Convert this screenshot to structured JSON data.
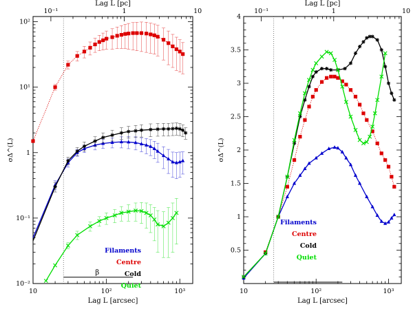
{
  "chart_data": [
    {
      "type": "line",
      "xscale": "log",
      "yscale": "log",
      "xlim": [
        10,
        1500
      ],
      "ylim": [
        0.01,
        120
      ],
      "xlabel": "Lag L [arcsec]",
      "ylabel": "σΔ^(L)",
      "top_xlabel": "Lag L [pc]",
      "x_tick_labels": [
        "10",
        "10²",
        "10³"
      ],
      "y_tick_labels": [
        "10⁻²",
        "10⁻¹",
        "1",
        "10¹",
        "10²"
      ],
      "top_tick_labels": [
        "10⁻¹",
        "1",
        "10"
      ],
      "annotation": "β",
      "legend": [
        "Filaments",
        "Centre",
        "Cold",
        "Quiet"
      ],
      "series": [
        {
          "name": "Filaments",
          "color": "#0000cc",
          "marker": "triangle",
          "x": [
            10,
            20,
            30,
            40,
            50,
            70,
            90,
            120,
            160,
            200,
            250,
            300,
            350,
            400,
            450,
            500,
            600,
            700,
            800,
            900,
            1000,
            1100
          ],
          "y": [
            0.05,
            0.32,
            0.7,
            1.0,
            1.15,
            1.3,
            1.38,
            1.43,
            1.46,
            1.45,
            1.42,
            1.36,
            1.3,
            1.24,
            1.15,
            1.05,
            0.9,
            0.8,
            0.72,
            0.7,
            0.72,
            0.75
          ],
          "err": [
            0,
            0.05,
            0.1,
            0.12,
            0.15,
            0.2,
            0.22,
            0.25,
            0.28,
            0.3,
            0.32,
            0.33,
            0.34,
            0.34,
            0.34,
            0.34,
            0.33,
            0.32,
            0.3,
            0.3,
            0.3,
            0.28
          ]
        },
        {
          "name": "Centre",
          "color": "#dd0000",
          "marker": "square",
          "x": [
            10,
            20,
            30,
            40,
            50,
            60,
            70,
            80,
            90,
            100,
            120,
            140,
            160,
            180,
            200,
            230,
            260,
            300,
            350,
            400,
            450,
            500,
            600,
            700,
            800,
            900,
            1000,
            1100
          ],
          "y": [
            1.5,
            10,
            22,
            30,
            35,
            40,
            45,
            49,
            52,
            55,
            58,
            61,
            63,
            65,
            66,
            67,
            67,
            67,
            66,
            64,
            62,
            59,
            53,
            47,
            42,
            38,
            35,
            32
          ],
          "err": [
            0,
            1,
            3,
            5,
            7,
            9,
            11,
            13,
            15,
            17,
            20,
            22,
            24,
            26,
            28,
            30,
            31,
            32,
            32,
            31,
            30,
            29,
            27,
            25,
            22,
            20,
            18,
            16
          ]
        },
        {
          "name": "Cold",
          "color": "#000000",
          "marker": "star",
          "x": [
            10,
            20,
            30,
            40,
            50,
            70,
            90,
            120,
            160,
            200,
            250,
            300,
            400,
            500,
            600,
            700,
            800,
            900,
            1000,
            1100,
            1200
          ],
          "y": [
            0.045,
            0.3,
            0.75,
            1.05,
            1.25,
            1.5,
            1.7,
            1.85,
            2.0,
            2.1,
            2.15,
            2.2,
            2.25,
            2.28,
            2.3,
            2.3,
            2.32,
            2.35,
            2.3,
            2.2,
            2.0
          ],
          "err": [
            0,
            0.05,
            0.1,
            0.15,
            0.2,
            0.25,
            0.3,
            0.35,
            0.4,
            0.42,
            0.45,
            0.47,
            0.5,
            0.5,
            0.5,
            0.5,
            0.5,
            0.5,
            0.48,
            0.45,
            0.4
          ]
        },
        {
          "name": "Quiet",
          "color": "#00dd00",
          "marker": "cross",
          "x": [
            15,
            20,
            30,
            40,
            60,
            80,
            100,
            130,
            160,
            200,
            250,
            300,
            350,
            400,
            450,
            500,
            600,
            700,
            800,
            900
          ],
          "y": [
            0.011,
            0.019,
            0.038,
            0.055,
            0.075,
            0.09,
            0.1,
            0.11,
            0.12,
            0.125,
            0.13,
            0.128,
            0.12,
            0.11,
            0.095,
            0.08,
            0.075,
            0.085,
            0.1,
            0.12
          ],
          "err": [
            0,
            0,
            0.004,
            0.008,
            0.012,
            0.015,
            0.02,
            0.025,
            0.03,
            0.035,
            0.04,
            0.045,
            0.05,
            0.05,
            0.05,
            0.05,
            0.05,
            0.06,
            0.07,
            0.08
          ]
        }
      ]
    },
    {
      "type": "line",
      "xscale": "log",
      "yscale": "linear",
      "xlim": [
        10,
        1500
      ],
      "ylim": [
        0,
        4
      ],
      "xlabel": "Lag L [arcsec]",
      "ylabel": "σΔ^(L)",
      "top_xlabel": "Lag L [pc]",
      "x_tick_labels": [
        "10",
        "10²",
        "10³"
      ],
      "y_tick_labels": [
        "0.5",
        "1",
        "1.5",
        "2",
        "2.5",
        "3",
        "3.5",
        "4"
      ],
      "top_tick_labels": [
        "10⁻¹",
        "1",
        "10"
      ],
      "legend": [
        "Filaments",
        "Centre",
        "Cold",
        "Quiet"
      ],
      "series": [
        {
          "name": "Filaments",
          "color": "#0000cc",
          "marker": "triangle",
          "x": [
            10,
            20,
            30,
            40,
            50,
            60,
            70,
            80,
            100,
            120,
            150,
            180,
            200,
            230,
            260,
            300,
            350,
            400,
            500,
            600,
            700,
            800,
            900,
            1000,
            1100,
            1200
          ],
          "y": [
            0.08,
            0.45,
            1.0,
            1.3,
            1.5,
            1.62,
            1.72,
            1.8,
            1.88,
            1.95,
            2.02,
            2.04,
            2.03,
            1.97,
            1.88,
            1.78,
            1.62,
            1.5,
            1.3,
            1.15,
            1.02,
            0.93,
            0.9,
            0.92,
            0.98,
            1.03
          ]
        },
        {
          "name": "Centre",
          "color": "#dd0000",
          "marker": "square",
          "x": [
            20,
            30,
            40,
            50,
            60,
            70,
            80,
            90,
            100,
            120,
            140,
            160,
            180,
            200,
            230,
            260,
            300,
            350,
            400,
            450,
            500,
            600,
            700,
            800,
            900,
            1000,
            1100,
            1200
          ],
          "y": [
            0.47,
            1.0,
            1.45,
            1.85,
            2.2,
            2.45,
            2.65,
            2.8,
            2.9,
            3.02,
            3.08,
            3.1,
            3.1,
            3.08,
            3.03,
            2.98,
            2.9,
            2.8,
            2.68,
            2.55,
            2.45,
            2.28,
            2.1,
            1.95,
            1.85,
            1.75,
            1.6,
            1.45
          ]
        },
        {
          "name": "Cold",
          "color": "#000000",
          "marker": "star",
          "x": [
            10,
            20,
            30,
            40,
            50,
            60,
            70,
            80,
            90,
            100,
            120,
            140,
            160,
            200,
            250,
            300,
            350,
            400,
            450,
            500,
            550,
            600,
            700,
            800,
            900,
            1000,
            1100,
            1200
          ],
          "y": [
            0.1,
            0.45,
            1.0,
            1.6,
            2.1,
            2.5,
            2.75,
            2.95,
            3.1,
            3.17,
            3.22,
            3.22,
            3.2,
            3.2,
            3.22,
            3.3,
            3.45,
            3.55,
            3.62,
            3.68,
            3.7,
            3.7,
            3.65,
            3.5,
            3.25,
            3.0,
            2.85,
            2.75
          ]
        },
        {
          "name": "Quiet",
          "color": "#00dd00",
          "marker": "cross",
          "x": [
            10,
            20,
            30,
            40,
            50,
            60,
            70,
            80,
            90,
            100,
            120,
            140,
            160,
            180,
            200,
            230,
            260,
            300,
            350,
            400,
            450,
            500,
            550,
            600,
            650,
            700,
            800,
            900
          ],
          "y": [
            0.1,
            0.45,
            1.0,
            1.6,
            2.15,
            2.55,
            2.85,
            3.05,
            3.2,
            3.3,
            3.4,
            3.47,
            3.45,
            3.35,
            3.2,
            2.95,
            2.72,
            2.5,
            2.3,
            2.15,
            2.1,
            2.12,
            2.2,
            2.35,
            2.55,
            2.75,
            3.1,
            3.45
          ]
        }
      ]
    }
  ]
}
